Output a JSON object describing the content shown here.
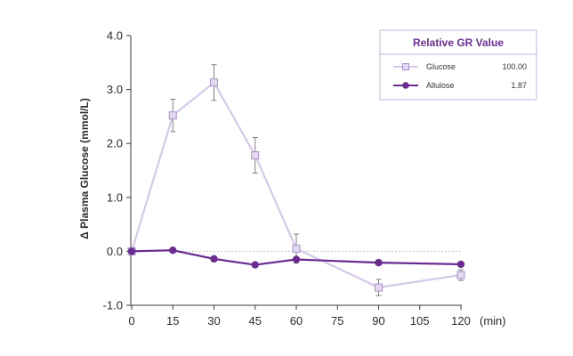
{
  "chart_data": {
    "type": "line",
    "ylabel": "Δ Plasma Glucose (mmol/L)",
    "x_unit_label": "(min)",
    "x": [
      0,
      15,
      30,
      45,
      60,
      75,
      90,
      105,
      120
    ],
    "x_tick_labels": [
      "0",
      "15",
      "30",
      "45",
      "60",
      "75",
      "90",
      "105",
      "120"
    ],
    "ylim": [
      -1.0,
      4.0
    ],
    "y_ticks": [
      -1.0,
      0.0,
      1.0,
      2.0,
      3.0,
      4.0
    ],
    "y_tick_labels": [
      "-1.0",
      "0.0",
      "1.0",
      "2.0",
      "3.0",
      "4.0"
    ],
    "zero_reference_line": "dotted",
    "grid": false,
    "legend": {
      "title": "Relative GR Value",
      "position": "top-right",
      "entries": [
        {
          "name": "Glucose",
          "value": "100.00"
        },
        {
          "name": "Allulose",
          "value": "1.87"
        }
      ]
    },
    "series": [
      {
        "name": "Glucose",
        "marker": "square",
        "color": "#d6c8ea",
        "marker_fill": "#e3d9f1",
        "marker_stroke": "#a892cc",
        "x": [
          0,
          15,
          30,
          45,
          60,
          90,
          120
        ],
        "y": [
          0.0,
          2.52,
          3.13,
          1.78,
          0.05,
          -0.67,
          -0.44
        ],
        "err": [
          0,
          0.3,
          0.33,
          0.33,
          0.27,
          0.15,
          0.1
        ]
      },
      {
        "name": "Allulose",
        "marker": "circle",
        "color": "#6a2c91",
        "x": [
          0,
          15,
          30,
          45,
          60,
          90,
          120
        ],
        "y": [
          0.0,
          0.02,
          -0.14,
          -0.25,
          -0.15,
          -0.21,
          -0.24
        ]
      }
    ]
  }
}
